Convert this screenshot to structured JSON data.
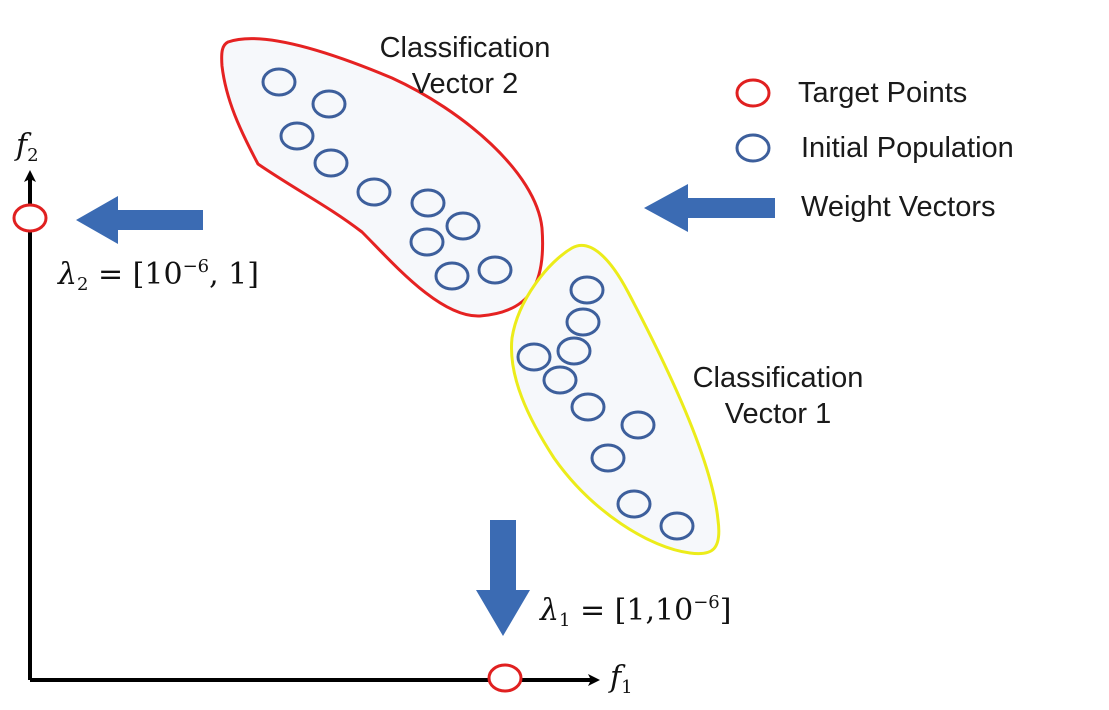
{
  "labels": {
    "group2_line1": "Classification",
    "group2_line2": "Vector 2",
    "group1_line1": "Classification",
    "group1_line2": "Vector 1"
  },
  "legend": {
    "target_points": "Target Points",
    "initial_population": "Initial Population",
    "weight_vectors": "Weight Vectors"
  },
  "axes": {
    "x_symbol": "f",
    "x_index": "1",
    "y_symbol": "f",
    "y_index": "2"
  },
  "lambda2": {
    "symbol": "λ",
    "index": "2",
    "prefix": " = [10",
    "exponent": "−6",
    "suffix": ", 1]"
  },
  "lambda1": {
    "symbol": "λ",
    "index": "1",
    "prefix": " = [1,10",
    "exponent": "−6",
    "suffix": "]"
  },
  "colors": {
    "target": "#e02020",
    "population": "#3d5f9c",
    "arrow": "#3b6bb3",
    "group2_outline": "#e52222",
    "group1_outline": "#ecec1a",
    "group_fill": "#f6f8fb",
    "axis": "#000000"
  }
}
